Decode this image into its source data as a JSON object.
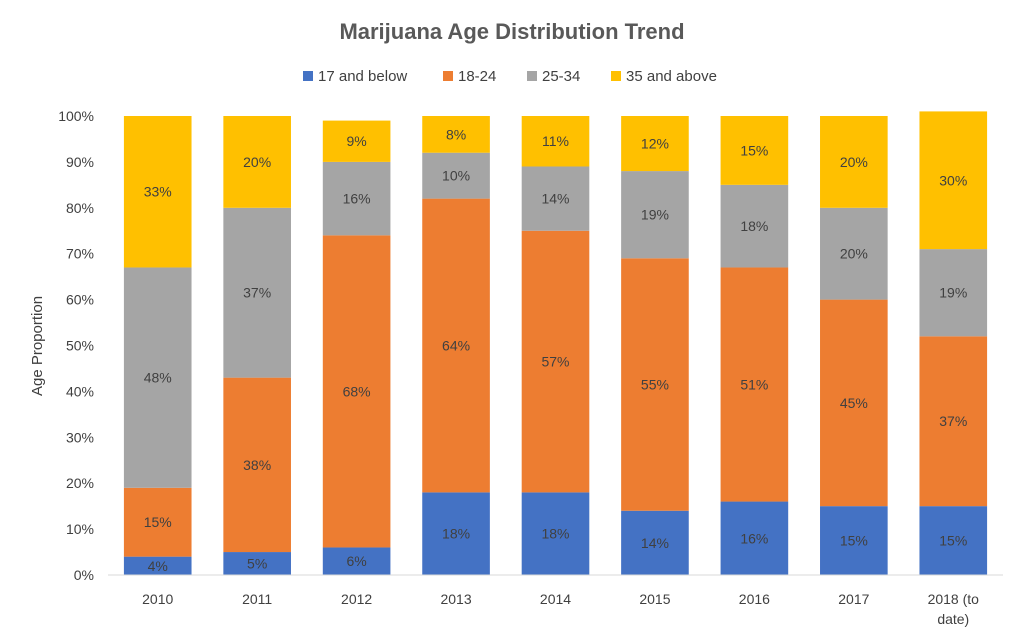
{
  "chart_data": {
    "type": "bar",
    "stacked": true,
    "title": "Marijuana Age Distribution Trend",
    "xlabel": "",
    "ylabel": "Age Proportion",
    "ylim": [
      0,
      100
    ],
    "y_ticks": [
      "0%",
      "10%",
      "20%",
      "30%",
      "40%",
      "50%",
      "60%",
      "70%",
      "80%",
      "90%",
      "100%"
    ],
    "categories": [
      "2010",
      "2011",
      "2012",
      "2013",
      "2014",
      "2015",
      "2016",
      "2017",
      "2018 (to date)"
    ],
    "category_lines": [
      [
        "2010"
      ],
      [
        "2011"
      ],
      [
        "2012"
      ],
      [
        "2013"
      ],
      [
        "2014"
      ],
      [
        "2015"
      ],
      [
        "2016"
      ],
      [
        "2017"
      ],
      [
        "2018 (to",
        "date)"
      ]
    ],
    "legend_position": "top",
    "grid": false,
    "series": [
      {
        "name": "17 and below",
        "color": "#4472C4",
        "values": [
          4,
          5,
          6,
          18,
          18,
          14,
          16,
          15,
          15
        ],
        "labels": [
          "4%",
          "5%",
          "6%",
          "18%",
          "18%",
          "14%",
          "16%",
          "15%",
          "15%"
        ]
      },
      {
        "name": "18-24",
        "color": "#ED7D31",
        "values": [
          15,
          38,
          68,
          64,
          57,
          55,
          51,
          45,
          37
        ],
        "labels": [
          "15%",
          "38%",
          "68%",
          "64%",
          "57%",
          "55%",
          "51%",
          "45%",
          "37%"
        ]
      },
      {
        "name": "25-34",
        "color": "#A5A5A5",
        "values": [
          48,
          37,
          16,
          10,
          14,
          19,
          18,
          20,
          19
        ],
        "labels": [
          "48%",
          "37%",
          "16%",
          "10%",
          "14%",
          "19%",
          "18%",
          "20%",
          "19%"
        ]
      },
      {
        "name": "35 and above",
        "color": "#FFC000",
        "values": [
          33,
          20,
          9,
          8,
          11,
          12,
          15,
          20,
          30
        ],
        "labels": [
          "33%",
          "20%",
          "9%",
          "8%",
          "11%",
          "12%",
          "15%",
          "20%",
          "30%"
        ]
      }
    ]
  }
}
